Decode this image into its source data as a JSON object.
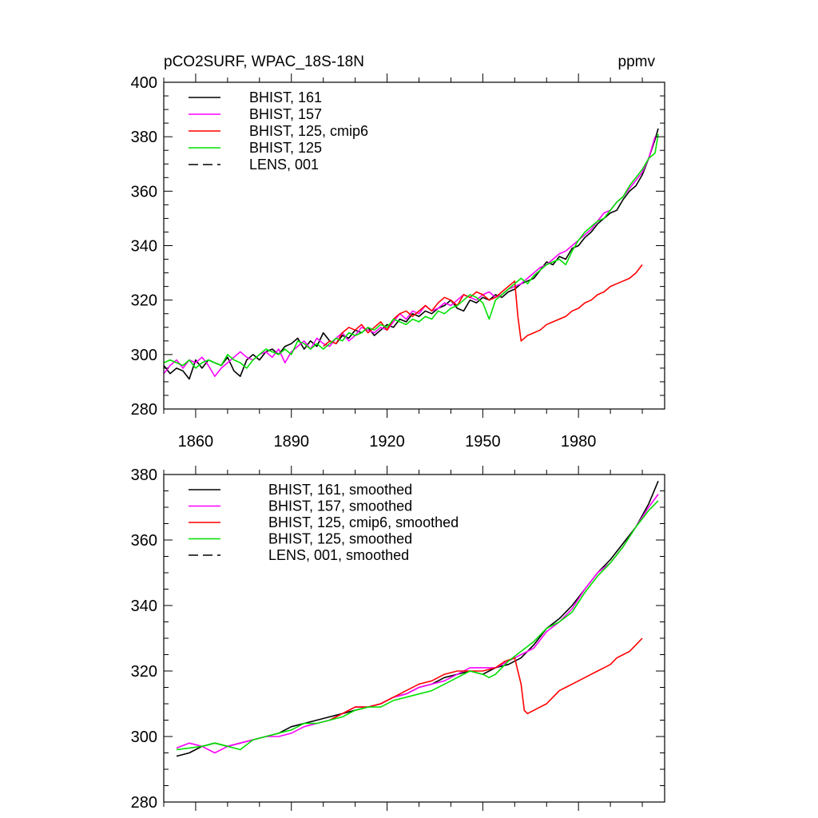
{
  "chart_data": [
    {
      "type": "line",
      "title": "pCO2SURF, WPAC_18S-18N",
      "units": "ppmv",
      "xlabel": "",
      "ylabel": "",
      "xlim": [
        1850,
        2007
      ],
      "ylim": [
        280,
        400
      ],
      "xticks": [
        1860,
        1890,
        1920,
        1950,
        1980
      ],
      "yticks": [
        280,
        300,
        320,
        340,
        360,
        380,
        400
      ],
      "legend_position": "top-left",
      "series": [
        {
          "name": "BHIST, 161",
          "color": "#000000",
          "dash": "solid",
          "x": [
            1850,
            1852,
            1854,
            1856,
            1858,
            1860,
            1862,
            1864,
            1866,
            1868,
            1870,
            1872,
            1874,
            1876,
            1878,
            1880,
            1882,
            1884,
            1886,
            1888,
            1890,
            1892,
            1894,
            1896,
            1898,
            1900,
            1902,
            1904,
            1906,
            1908,
            1910,
            1912,
            1914,
            1916,
            1918,
            1920,
            1922,
            1924,
            1926,
            1928,
            1930,
            1932,
            1934,
            1936,
            1938,
            1940,
            1942,
            1944,
            1946,
            1948,
            1950,
            1952,
            1954,
            1956,
            1958,
            1960,
            1962,
            1964,
            1966,
            1968,
            1970,
            1972,
            1974,
            1976,
            1978,
            1980,
            1982,
            1984,
            1986,
            1988,
            1990,
            1992,
            1994,
            1996,
            1998,
            2000,
            2002,
            2004,
            2005
          ],
          "y": [
            296,
            293,
            295,
            294,
            291,
            298,
            295,
            298,
            297,
            296,
            299,
            294,
            292,
            298,
            300,
            298,
            301,
            302,
            300,
            303,
            304,
            306,
            302,
            305,
            303,
            308,
            305,
            304,
            307,
            306,
            309,
            308,
            310,
            307,
            309,
            311,
            310,
            313,
            312,
            315,
            314,
            316,
            315,
            317,
            318,
            320,
            317,
            316,
            320,
            319,
            321,
            320,
            322,
            321,
            323,
            324,
            326,
            327,
            328,
            331,
            334,
            333,
            336,
            335,
            339,
            340,
            343,
            345,
            348,
            350,
            352,
            353,
            357,
            360,
            362,
            366,
            372,
            379,
            383
          ]
        },
        {
          "name": "BHIST, 157",
          "color": "#ff00ff",
          "dash": "solid",
          "x": [
            1850,
            1852,
            1854,
            1856,
            1858,
            1860,
            1862,
            1864,
            1866,
            1868,
            1870,
            1872,
            1874,
            1876,
            1878,
            1880,
            1882,
            1884,
            1886,
            1888,
            1890,
            1892,
            1894,
            1896,
            1898,
            1900,
            1902,
            1904,
            1906,
            1908,
            1910,
            1912,
            1914,
            1916,
            1918,
            1920,
            1922,
            1924,
            1926,
            1928,
            1930,
            1932,
            1934,
            1936,
            1938,
            1940,
            1942,
            1944,
            1946,
            1948,
            1950,
            1952,
            1954,
            1956,
            1958,
            1960,
            1962,
            1964,
            1966,
            1968,
            1970,
            1972,
            1974,
            1976,
            1978,
            1980,
            1982,
            1984,
            1986,
            1988,
            1990,
            1992,
            1994,
            1996,
            1998,
            2000,
            2002,
            2004
          ],
          "y": [
            293,
            296,
            298,
            295,
            298,
            297,
            299,
            296,
            292,
            295,
            297,
            299,
            301,
            299,
            298,
            300,
            301,
            299,
            302,
            297,
            301,
            303,
            305,
            302,
            306,
            304,
            303,
            306,
            308,
            305,
            307,
            310,
            309,
            308,
            310,
            309,
            312,
            315,
            313,
            316,
            315,
            318,
            316,
            317,
            319,
            318,
            320,
            322,
            321,
            320,
            322,
            323,
            321,
            322,
            324,
            325,
            326,
            328,
            330,
            332,
            333,
            335,
            337,
            338,
            340,
            342,
            344,
            346,
            349,
            352,
            353,
            356,
            358,
            361,
            364,
            367,
            372,
            380
          ]
        },
        {
          "name": "BHIST, 125, cmip6",
          "color": "#ff0000",
          "dash": "solid",
          "x": [
            1900,
            1902,
            1904,
            1906,
            1908,
            1910,
            1912,
            1914,
            1916,
            1918,
            1920,
            1922,
            1924,
            1926,
            1928,
            1930,
            1932,
            1934,
            1936,
            1938,
            1940,
            1942,
            1944,
            1946,
            1948,
            1950,
            1952,
            1954,
            1956,
            1958,
            1960,
            1961,
            1962,
            1964,
            1966,
            1968,
            1970,
            1972,
            1974,
            1976,
            1978,
            1980,
            1982,
            1984,
            1986,
            1988,
            1990,
            1992,
            1994,
            1996,
            1998,
            2000
          ],
          "y": [
            303,
            305,
            304,
            308,
            310,
            309,
            311,
            308,
            310,
            312,
            309,
            313,
            315,
            316,
            314,
            316,
            318,
            316,
            319,
            321,
            320,
            318,
            322,
            321,
            323,
            322,
            320,
            321,
            323,
            325,
            327,
            314,
            305,
            307,
            308,
            309,
            311,
            312,
            313,
            314,
            316,
            317,
            319,
            320,
            322,
            323,
            325,
            326,
            327,
            328,
            330,
            333
          ]
        },
        {
          "name": "BHIST, 125",
          "color": "#00e000",
          "dash": "solid",
          "x": [
            1850,
            1852,
            1854,
            1856,
            1858,
            1860,
            1862,
            1864,
            1866,
            1868,
            1870,
            1872,
            1874,
            1876,
            1878,
            1880,
            1882,
            1884,
            1886,
            1888,
            1890,
            1892,
            1894,
            1896,
            1898,
            1900,
            1902,
            1904,
            1906,
            1908,
            1910,
            1912,
            1914,
            1916,
            1918,
            1920,
            1922,
            1924,
            1926,
            1928,
            1930,
            1932,
            1934,
            1936,
            1938,
            1940,
            1942,
            1944,
            1946,
            1948,
            1950,
            1952,
            1954,
            1956,
            1958,
            1960,
            1962,
            1964,
            1966,
            1968,
            1970,
            1972,
            1974,
            1976,
            1978,
            1980,
            1982,
            1984,
            1986,
            1988,
            1990,
            1992,
            1994,
            1996,
            1998,
            2000,
            2002,
            2004,
            2005
          ],
          "y": [
            297,
            298,
            297,
            296,
            298,
            295,
            297,
            298,
            297,
            296,
            300,
            298,
            297,
            295,
            298,
            300,
            302,
            301,
            300,
            302,
            300,
            305,
            304,
            302,
            304,
            302,
            304,
            306,
            305,
            308,
            307,
            308,
            310,
            309,
            311,
            310,
            313,
            312,
            311,
            313,
            312,
            314,
            313,
            316,
            315,
            317,
            318,
            320,
            322,
            321,
            319,
            313,
            320,
            322,
            324,
            326,
            328,
            326,
            329,
            331,
            333,
            334,
            335,
            333,
            338,
            342,
            345,
            347,
            349,
            350,
            353,
            356,
            358,
            362,
            365,
            368,
            372,
            374,
            381
          ]
        },
        {
          "name": "LENS, 001",
          "color": "#000000",
          "dash": "dashed",
          "x": [],
          "y": []
        }
      ]
    },
    {
      "type": "line",
      "title": "",
      "xlabel": "",
      "ylabel": "",
      "xlim": [
        1850,
        2007
      ],
      "ylim": [
        280,
        380
      ],
      "xticks": [
        1860,
        1890,
        1920,
        1950,
        1980
      ],
      "yticks": [
        280,
        300,
        320,
        340,
        360,
        380
      ],
      "legend_position": "top-left",
      "series": [
        {
          "name": "BHIST, 161, smoothed",
          "color": "#000000",
          "dash": "solid",
          "x": [
            1854,
            1858,
            1862,
            1866,
            1870,
            1874,
            1878,
            1882,
            1886,
            1890,
            1894,
            1898,
            1902,
            1906,
            1910,
            1914,
            1918,
            1922,
            1926,
            1930,
            1934,
            1938,
            1942,
            1946,
            1950,
            1954,
            1958,
            1962,
            1966,
            1970,
            1974,
            1978,
            1982,
            1986,
            1990,
            1994,
            1998,
            2002,
            2005
          ],
          "y": [
            294,
            295,
            297,
            298,
            297,
            298,
            299,
            300,
            301,
            303,
            304,
            305,
            306,
            307,
            308,
            309,
            310,
            312,
            313,
            315,
            316,
            318,
            319,
            320,
            319,
            321,
            322,
            324,
            328,
            333,
            336,
            340,
            345,
            350,
            354,
            359,
            364,
            371,
            378
          ]
        },
        {
          "name": "BHIST, 157, smoothed",
          "color": "#ff00ff",
          "dash": "solid",
          "x": [
            1854,
            1858,
            1862,
            1866,
            1870,
            1874,
            1878,
            1882,
            1886,
            1890,
            1894,
            1898,
            1902,
            1906,
            1910,
            1914,
            1918,
            1922,
            1926,
            1930,
            1934,
            1938,
            1942,
            1946,
            1950,
            1954,
            1958,
            1962,
            1966,
            1970,
            1974,
            1978,
            1982,
            1986,
            1990,
            1994,
            1998,
            2002,
            2005
          ],
          "y": [
            296.5,
            298,
            297,
            295,
            297,
            298,
            299,
            300,
            300,
            301,
            303,
            304,
            305,
            307,
            309,
            309,
            310,
            312,
            313,
            315,
            316,
            317,
            319,
            321,
            321,
            321,
            323,
            325,
            327,
            332,
            335,
            339,
            345,
            350,
            353,
            358,
            364,
            370,
            374
          ]
        },
        {
          "name": "BHIST, 125, cmip6, smoothed",
          "color": "#ff0000",
          "dash": "solid",
          "x": [
            1902,
            1906,
            1910,
            1914,
            1918,
            1922,
            1926,
            1930,
            1934,
            1938,
            1942,
            1946,
            1950,
            1954,
            1957,
            1960,
            1962,
            1963,
            1964,
            1966,
            1968,
            1970,
            1972,
            1974,
            1976,
            1978,
            1980,
            1982,
            1984,
            1986,
            1988,
            1990,
            1992,
            1994,
            1996,
            1998,
            2000
          ],
          "y": [
            305,
            307,
            309,
            309,
            310,
            312,
            314,
            316,
            317,
            319,
            320,
            320,
            320,
            321,
            323,
            324,
            316,
            308,
            307,
            308,
            309,
            310,
            312,
            314,
            315,
            316,
            317,
            318,
            319,
            320,
            321,
            322,
            324,
            325,
            326,
            328,
            330
          ]
        },
        {
          "name": "BHIST, 125, smoothed",
          "color": "#00e000",
          "dash": "solid",
          "x": [
            1854,
            1858,
            1862,
            1866,
            1870,
            1874,
            1878,
            1882,
            1886,
            1890,
            1894,
            1898,
            1902,
            1906,
            1910,
            1914,
            1918,
            1922,
            1926,
            1930,
            1934,
            1938,
            1942,
            1946,
            1950,
            1952,
            1954,
            1958,
            1962,
            1966,
            1970,
            1974,
            1978,
            1982,
            1986,
            1990,
            1994,
            1998,
            2002,
            2005
          ],
          "y": [
            296,
            296.5,
            297,
            298,
            297,
            296,
            299,
            300,
            301,
            302,
            304,
            304,
            305,
            306,
            308,
            309,
            309,
            311,
            312,
            313,
            314,
            316,
            318,
            320,
            319,
            318,
            319,
            323,
            326,
            329,
            333,
            335,
            338,
            344,
            349,
            353,
            358,
            364,
            369,
            372
          ]
        },
        {
          "name": "LENS, 001, smoothed",
          "color": "#000000",
          "dash": "dashed",
          "x": [],
          "y": []
        }
      ]
    }
  ]
}
